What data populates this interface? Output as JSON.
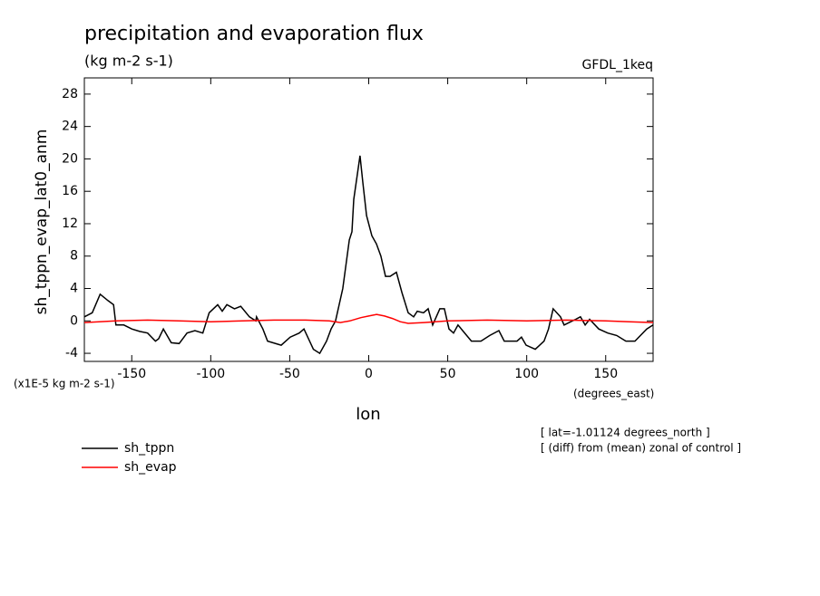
{
  "chart_data": {
    "type": "line",
    "title": "precipitation and evaporation flux",
    "subtitle": "(kg m-2 s-1)",
    "dataset": "GFDL_1keq",
    "ylabel": "sh_tppn_evap_lat0_anm",
    "xlabel": "lon",
    "y_units": "(x1E-5 kg m-2 s-1)",
    "x_units": "(degrees_east)",
    "annotations": [
      "[ lat=-1.01124 degrees_north ]",
      "[ (diff) from (mean) zonal of control ]"
    ],
    "xlim": [
      -180,
      180
    ],
    "ylim": [
      -5,
      30
    ],
    "xticks": [
      -150,
      -100,
      -50,
      0,
      50,
      100,
      150
    ],
    "yticks": [
      -4,
      0,
      4,
      8,
      12,
      16,
      20,
      24,
      28
    ],
    "series": [
      {
        "name": "sh_tppn",
        "color": "#000000",
        "x": [
          -180,
          -175,
          -170,
          -165,
          -161.5,
          -160,
          -155,
          -150,
          -145,
          -140,
          -135,
          -133,
          -130,
          -125,
          -120,
          -115,
          -110,
          -105,
          -101,
          -95.6,
          -92.7,
          -89.8,
          -85,
          -81,
          -75.5,
          -71.5,
          -71,
          -67,
          -64,
          -55.4,
          -49.7,
          -44,
          -41,
          -35,
          -31,
          -26.7,
          -23.8,
          -21,
          -16.4,
          -12.3,
          -10.6,
          -9.5,
          -5.5,
          -3.7,
          -1.4,
          2,
          4.9,
          7.7,
          10.6,
          13.5,
          17.5,
          21,
          25,
          28.4,
          30.7,
          34.7,
          37.6,
          40.5,
          45,
          47.9,
          50.8,
          53.7,
          56.5,
          65,
          71,
          76.6,
          82.4,
          85.8,
          93.9,
          96.7,
          99.6,
          105.4,
          111,
          113.8,
          116.7,
          121.4,
          123.7,
          131,
          134,
          137,
          139.8,
          145.6,
          151.3,
          157,
          162.8,
          168.5,
          176,
          180
        ],
        "values": [
          0.5,
          1,
          3.3,
          2.5,
          2,
          -0.5,
          -0.5,
          -1,
          -1.3,
          -1.5,
          -2.5,
          -2.2,
          -1,
          -2.7,
          -2.8,
          -1.5,
          -1.2,
          -1.5,
          1,
          2,
          1.2,
          2,
          1.5,
          1.8,
          0.5,
          0,
          0.5,
          -1,
          -2.5,
          -3,
          -2,
          -1.5,
          -1,
          -3.5,
          -4,
          -2.5,
          -1,
          0,
          4,
          10,
          11,
          15,
          20.4,
          17,
          13,
          10.5,
          9.5,
          8,
          5.5,
          5.5,
          6,
          3.5,
          1,
          0.5,
          1.2,
          1,
          1.5,
          -0.5,
          1.5,
          1.5,
          -1,
          -1.5,
          -0.5,
          -2.5,
          -2.5,
          -1.8,
          -1.2,
          -2.5,
          -2.5,
          -2,
          -3,
          -3.5,
          -2.5,
          -1,
          1.5,
          0.5,
          -0.5,
          0.2,
          0.5,
          -0.5,
          0.2,
          -1,
          -1.5,
          -1.8,
          -2.5,
          -2.5,
          -1,
          -0.5
        ]
      },
      {
        "name": "sh_evap",
        "color": "#ff0000",
        "x": [
          -180,
          -160,
          -140,
          -120,
          -100,
          -80,
          -60,
          -40,
          -25,
          -18,
          -12,
          -5,
          0,
          5,
          10,
          15,
          20,
          25,
          35,
          50,
          75,
          100,
          125,
          150,
          165,
          180
        ],
        "values": [
          -0.2,
          0,
          0.1,
          0,
          -0.1,
          0,
          0.1,
          0.1,
          0,
          -0.2,
          0,
          0.4,
          0.6,
          0.8,
          0.6,
          0.3,
          -0.1,
          -0.3,
          -0.2,
          0,
          0.1,
          0,
          0.1,
          0,
          -0.1,
          -0.2
        ]
      }
    ]
  }
}
